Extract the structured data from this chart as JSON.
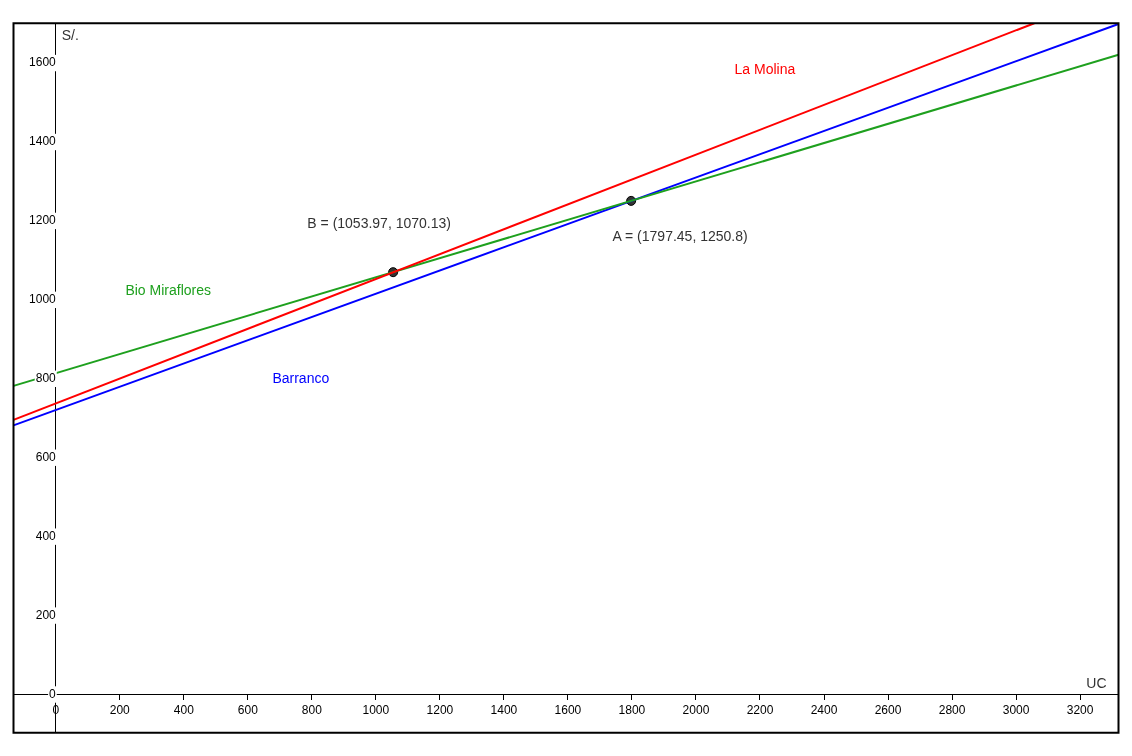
{
  "chart_data": {
    "type": "line",
    "xlabel": "UC",
    "ylabel": "S/.",
    "xlim": [
      -132,
      3320
    ],
    "ylim": [
      -97,
      1701
    ],
    "xticks": [
      0,
      200,
      400,
      600,
      800,
      1000,
      1200,
      1400,
      1600,
      1800,
      2000,
      2200,
      2400,
      2600,
      2800,
      3000,
      3200
    ],
    "yticks": [
      0,
      200,
      400,
      600,
      800,
      1000,
      1200,
      1400,
      1600
    ],
    "series": [
      {
        "name": "La Molina",
        "color": "#ff0000",
        "x": [
          -132,
          3057
        ],
        "values": [
          696,
          1701
        ]
      },
      {
        "name": "Bio Miraflores",
        "color": "#1ea01e",
        "x": [
          -132,
          3320
        ],
        "values": [
          782,
          1621
        ]
      },
      {
        "name": "Barranco",
        "color": "#0000ff",
        "x": [
          -132,
          3320
        ],
        "values": [
          682,
          1699
        ]
      },
      {
        "type": "scatter",
        "color": "#333333",
        "marker": "circle",
        "x": [
          1797.45,
          1053.97
        ],
        "values": [
          1250.8,
          1070.13
        ]
      }
    ],
    "annotations": [
      {
        "text": "B = (1053.97, 1070.13)",
        "x": 1053.97,
        "y": 1070.13
      },
      {
        "text": "A = (1797.45, 1250.8)",
        "x": 1797.45,
        "y": 1250.8
      }
    ],
    "grid": false,
    "legend": false
  }
}
